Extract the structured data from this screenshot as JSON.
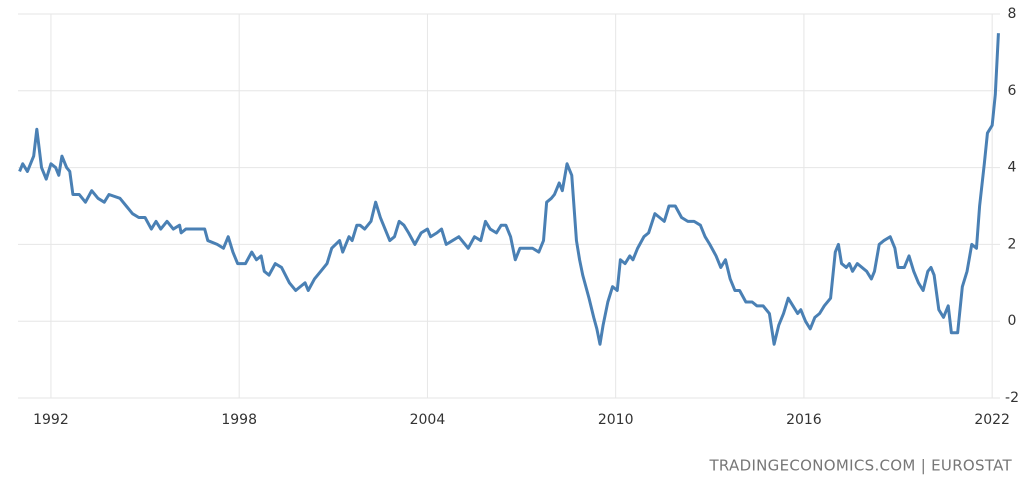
{
  "chart_data": {
    "type": "line",
    "color": "#4a80b4",
    "source": "TRADINGECONOMICS.COM | EUROSTAT",
    "x": [
      1991.0,
      1991.1,
      1991.25,
      1991.45,
      1991.55,
      1991.7,
      1991.85,
      1992.0,
      1992.15,
      1992.25,
      1992.35,
      1992.5,
      1992.6,
      1992.7,
      1992.9,
      1993.1,
      1993.3,
      1993.5,
      1993.7,
      1993.85,
      1994.2,
      1994.4,
      1994.6,
      1994.8,
      1995.0,
      1995.2,
      1995.35,
      1995.5,
      1995.7,
      1995.9,
      1996.1,
      1996.15,
      1996.3,
      1996.9,
      1997.0,
      1997.3,
      1997.5,
      1997.65,
      1997.8,
      1997.95,
      1998.2,
      1998.4,
      1998.55,
      1998.7,
      1998.8,
      1998.95,
      1999.15,
      1999.35,
      1999.6,
      1999.8,
      1999.95,
      2000.1,
      2000.2,
      2000.4,
      2000.6,
      2000.8,
      2000.95,
      2001.2,
      2001.3,
      2001.5,
      2001.6,
      2001.75,
      2001.85,
      2002.0,
      2002.2,
      2002.35,
      2002.5,
      2002.65,
      2002.8,
      2002.95,
      2003.1,
      2003.25,
      2003.4,
      2003.6,
      2003.8,
      2004.0,
      2004.1,
      2004.3,
      2004.45,
      2004.6,
      2004.8,
      2005.0,
      2005.3,
      2005.5,
      2005.7,
      2005.85,
      2006.0,
      2006.2,
      2006.35,
      2006.5,
      2006.65,
      2006.8,
      2006.95,
      2007.2,
      2007.35,
      2007.55,
      2007.7,
      2007.8,
      2007.95,
      2008.05,
      2008.2,
      2008.3,
      2008.45,
      2008.6,
      2008.75,
      2008.85,
      2008.95,
      2009.15,
      2009.3,
      2009.4,
      2009.5,
      2009.6,
      2009.75,
      2009.9,
      2010.05,
      2010.15,
      2010.3,
      2010.45,
      2010.55,
      2010.7,
      2010.9,
      2011.05,
      2011.25,
      2011.4,
      2011.55,
      2011.7,
      2011.9,
      2012.1,
      2012.3,
      2012.5,
      2012.7,
      2012.85,
      2013.0,
      2013.2,
      2013.35,
      2013.5,
      2013.65,
      2013.8,
      2013.95,
      2014.15,
      2014.35,
      2014.5,
      2014.7,
      2014.9,
      2015.05,
      2015.2,
      2015.35,
      2015.5,
      2015.65,
      2015.8,
      2015.9,
      2016.05,
      2016.2,
      2016.35,
      2016.5,
      2016.65,
      2016.85,
      2017.0,
      2017.1,
      2017.2,
      2017.35,
      2017.45,
      2017.55,
      2017.7,
      2017.85,
      2018.0,
      2018.15,
      2018.25,
      2018.4,
      2018.55,
      2018.75,
      2018.9,
      2019.0,
      2019.2,
      2019.35,
      2019.5,
      2019.65,
      2019.8,
      2019.95,
      2020.05,
      2020.15,
      2020.3,
      2020.45,
      2020.6,
      2020.7,
      2020.9,
      2021.05,
      2021.2,
      2021.35,
      2021.5,
      2021.6,
      2021.75,
      2021.85,
      2022.0,
      2022.1,
      2022.2
    ],
    "values": [
      3.9,
      4.1,
      3.9,
      4.3,
      5.0,
      4.0,
      3.7,
      4.1,
      4.0,
      3.8,
      4.3,
      4.0,
      3.9,
      3.3,
      3.3,
      3.1,
      3.4,
      3.2,
      3.1,
      3.3,
      3.2,
      3.0,
      2.8,
      2.7,
      2.7,
      2.4,
      2.6,
      2.4,
      2.6,
      2.4,
      2.5,
      2.3,
      2.4,
      2.4,
      2.1,
      2.0,
      1.9,
      2.2,
      1.8,
      1.5,
      1.5,
      1.8,
      1.6,
      1.7,
      1.3,
      1.2,
      1.5,
      1.4,
      1.0,
      0.8,
      0.9,
      1.0,
      0.8,
      1.1,
      1.3,
      1.5,
      1.9,
      2.1,
      1.8,
      2.2,
      2.1,
      2.5,
      2.5,
      2.4,
      2.6,
      3.1,
      2.7,
      2.4,
      2.1,
      2.2,
      2.6,
      2.5,
      2.3,
      2.0,
      2.3,
      2.4,
      2.2,
      2.3,
      2.4,
      2.0,
      2.1,
      2.2,
      1.9,
      2.2,
      2.1,
      2.6,
      2.4,
      2.3,
      2.5,
      2.5,
      2.2,
      1.6,
      1.9,
      1.9,
      1.9,
      1.8,
      2.1,
      3.1,
      3.2,
      3.3,
      3.6,
      3.4,
      4.1,
      3.8,
      2.1,
      1.6,
      1.2,
      0.6,
      0.1,
      -0.2,
      -0.6,
      -0.1,
      0.5,
      0.9,
      0.8,
      1.6,
      1.5,
      1.7,
      1.6,
      1.9,
      2.2,
      2.3,
      2.8,
      2.7,
      2.6,
      3.0,
      3.0,
      2.7,
      2.6,
      2.6,
      2.5,
      2.2,
      2.0,
      1.7,
      1.4,
      1.6,
      1.1,
      0.8,
      0.8,
      0.5,
      0.5,
      0.4,
      0.4,
      0.2,
      -0.6,
      -0.1,
      0.2,
      0.6,
      0.4,
      0.2,
      0.3,
      0.0,
      -0.2,
      0.1,
      0.2,
      0.4,
      0.6,
      1.8,
      2.0,
      1.5,
      1.4,
      1.5,
      1.3,
      1.5,
      1.4,
      1.3,
      1.1,
      1.3,
      2.0,
      2.1,
      2.2,
      1.9,
      1.4,
      1.4,
      1.7,
      1.3,
      1.0,
      0.8,
      1.3,
      1.4,
      1.2,
      0.3,
      0.1,
      0.4,
      -0.3,
      -0.3,
      0.9,
      1.3,
      2.0,
      1.9,
      3.0,
      4.1,
      4.9,
      5.1,
      5.9,
      7.5
    ],
    "xlim": [
      1990.95,
      2022.25
    ],
    "xticks": [
      1992,
      1998,
      2004,
      2010,
      2016,
      2022
    ],
    "ylim": [
      -2,
      8
    ],
    "yticks": [
      -2,
      0,
      2,
      4,
      6,
      8
    ],
    "grid": true
  }
}
